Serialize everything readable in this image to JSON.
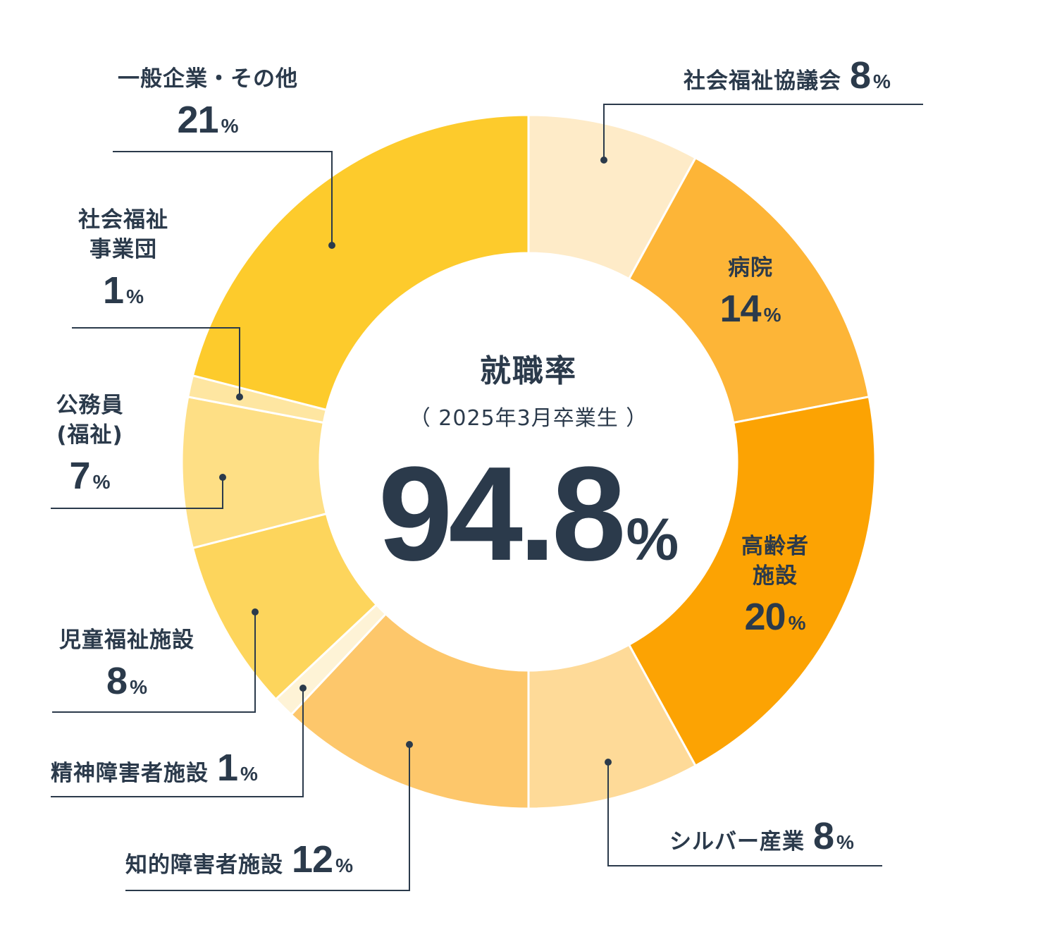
{
  "chart_data": {
    "type": "pie",
    "title": "就職率",
    "subtitle": "（ 2025年3月卒業生 ）",
    "center_value": "94.8",
    "center_unit": "%",
    "unit": "%",
    "slices": [
      {
        "label": "社会福祉協議会",
        "value": 8,
        "color": "#FEEBC8"
      },
      {
        "label": "病院",
        "value": 14,
        "color": "#FDB537"
      },
      {
        "label": "高齢者施設",
        "value": 20,
        "color": "#FCA303"
      },
      {
        "label": "シルバー産業",
        "value": 8,
        "color": "#FEDA98"
      },
      {
        "label": "知的障害者施設",
        "value": 12,
        "color": "#FDC76B"
      },
      {
        "label": "精神障害者施設",
        "value": 1,
        "color": "#FEF3D6"
      },
      {
        "label": "児童福祉施設",
        "value": 8,
        "color": "#FDD55C"
      },
      {
        "label": "公務員(福祉)",
        "value": 7,
        "color": "#FEDF85"
      },
      {
        "label": "社会福祉事業団",
        "value": 1,
        "color": "#FEE6A1"
      },
      {
        "label": "一般企業・その他",
        "value": 21,
        "color": "#FDCB2C"
      }
    ]
  },
  "labels": {
    "shakyo": {
      "name": "社会福祉協議会",
      "value": "8",
      "unit": "%"
    },
    "hospital": {
      "name1": "病院",
      "value": "14",
      "unit": "%"
    },
    "elderly": {
      "name1": "高齢者",
      "name2": "施設",
      "value": "20",
      "unit": "%"
    },
    "silver": {
      "name": "シルバー産業",
      "value": "8",
      "unit": "%"
    },
    "intellectual": {
      "name": "知的障害者施設",
      "value": "12",
      "unit": "%"
    },
    "mental": {
      "name": "精神障害者施設",
      "value": "1",
      "unit": "%"
    },
    "child": {
      "name1": "児童福祉施設",
      "value": "8",
      "unit": "%"
    },
    "public": {
      "name1": "公務員",
      "name2": "(福祉)",
      "value": "7",
      "unit": "%"
    },
    "jigyodan": {
      "name1": "社会福祉",
      "name2": "事業団",
      "value": "1",
      "unit": "%"
    },
    "general": {
      "name1": "一般企業・その他",
      "value": "21",
      "unit": "%"
    }
  }
}
